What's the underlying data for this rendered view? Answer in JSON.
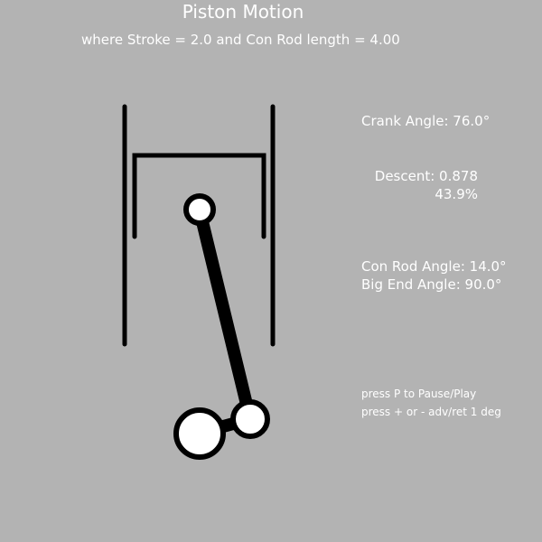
{
  "title": "Piston Motion",
  "subtitle": "where Stroke = 2.0 and Con Rod length = 4.00",
  "readouts": {
    "crank_angle": "Crank Angle: 76.0°",
    "descent_value": "Descent: 0.878",
    "descent_percent": "43.9%",
    "con_rod_angle": "Con Rod Angle: 14.0°",
    "big_end_angle": "Big End Angle: 90.0°"
  },
  "help": {
    "pause": "press P to Pause/Play",
    "step": "press + or - adv/ret 1 deg"
  },
  "colors": {
    "background": "#b3b3b3",
    "mechanism": "#000000",
    "joint_fill": "#ffffff",
    "text": "#ffffff"
  }
}
